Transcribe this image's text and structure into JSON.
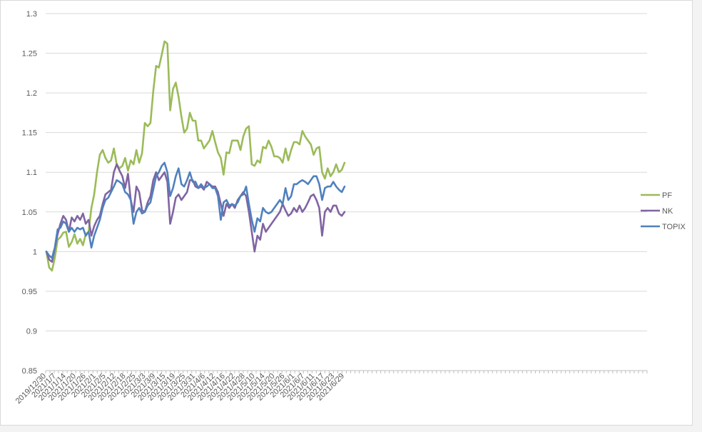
{
  "chart_data": {
    "type": "line",
    "title": "",
    "xlabel": "",
    "ylabel": "",
    "ylim": [
      0.85,
      1.3
    ],
    "yticks": [
      "0.85",
      "0.9",
      "0.95",
      "1",
      "1.05",
      "1.1",
      "1.15",
      "1.2",
      "1.25",
      "1.3"
    ],
    "grid": "horizontal",
    "legend_position": "right",
    "x_labels": [
      "2019/12/30",
      "2021/1/7",
      "2021/1/14",
      "2021/1/20",
      "2021/1/26",
      "2021/2/1",
      "2021/2/5",
      "2021/2/12",
      "2021/2/18",
      "2021/2/25",
      "2021/3/3",
      "2021/3/9",
      "2021/3/15",
      "2021/3/19",
      "2021/3/25",
      "2021/3/31",
      "2021/4/6",
      "2021/4/12",
      "2021/4/16",
      "2021/4/22",
      "2021/4/28",
      "2021/5/10",
      "2021/5/14",
      "2021/5/20",
      "2021/5/26",
      "2021/6/1",
      "2021/6/7",
      "2021/6/11",
      "2021/6/17",
      "2021/6/23",
      "2021/6/29"
    ],
    "series": [
      {
        "name": "PF",
        "color": "#9bbb59",
        "values": [
          1.0,
          0.98,
          0.976,
          0.992,
          1.015,
          1.018,
          1.024,
          1.025,
          1.006,
          1.012,
          1.022,
          1.01,
          1.016,
          1.008,
          1.022,
          1.025,
          1.055,
          1.072,
          1.1,
          1.122,
          1.128,
          1.118,
          1.112,
          1.115,
          1.13,
          1.11,
          1.105,
          1.108,
          1.118,
          1.102,
          1.115,
          1.11,
          1.128,
          1.112,
          1.124,
          1.162,
          1.158,
          1.162,
          1.202,
          1.234,
          1.232,
          1.248,
          1.265,
          1.262,
          1.178,
          1.205,
          1.213,
          1.195,
          1.17,
          1.15,
          1.155,
          1.175,
          1.165,
          1.165,
          1.14,
          1.14,
          1.13,
          1.135,
          1.14,
          1.152,
          1.138,
          1.125,
          1.118,
          1.097,
          1.125,
          1.124,
          1.14,
          1.14,
          1.14,
          1.128,
          1.145,
          1.155,
          1.158,
          1.11,
          1.108,
          1.115,
          1.112,
          1.132,
          1.13,
          1.14,
          1.132,
          1.12,
          1.12,
          1.118,
          1.112,
          1.13,
          1.115,
          1.128,
          1.138,
          1.138,
          1.135,
          1.152,
          1.145,
          1.14,
          1.135,
          1.122,
          1.13,
          1.132,
          1.1,
          1.092,
          1.105,
          1.095,
          1.1,
          1.11,
          1.1,
          1.103,
          1.112
        ]
      },
      {
        "name": "NK",
        "color": "#8064a2",
        "values": [
          1.0,
          0.99,
          0.987,
          1.004,
          1.022,
          1.035,
          1.045,
          1.04,
          1.025,
          1.043,
          1.038,
          1.045,
          1.04,
          1.048,
          1.035,
          1.04,
          1.02,
          1.032,
          1.04,
          1.045,
          1.06,
          1.072,
          1.075,
          1.078,
          1.1,
          1.11,
          1.102,
          1.095,
          1.08,
          1.098,
          1.065,
          1.05,
          1.082,
          1.075,
          1.052,
          1.05,
          1.062,
          1.07,
          1.09,
          1.1,
          1.09,
          1.095,
          1.1,
          1.088,
          1.035,
          1.05,
          1.068,
          1.072,
          1.065,
          1.07,
          1.075,
          1.09,
          1.09,
          1.082,
          1.08,
          1.082,
          1.078,
          1.088,
          1.085,
          1.082,
          1.082,
          1.075,
          1.06,
          1.045,
          1.06,
          1.055,
          1.06,
          1.055,
          1.065,
          1.07,
          1.075,
          1.07,
          1.05,
          1.025,
          1.0,
          1.02,
          1.015,
          1.035,
          1.025,
          1.03,
          1.035,
          1.04,
          1.045,
          1.05,
          1.06,
          1.052,
          1.045,
          1.048,
          1.055,
          1.05,
          1.058,
          1.05,
          1.055,
          1.062,
          1.07,
          1.072,
          1.065,
          1.055,
          1.02,
          1.05,
          1.055,
          1.05,
          1.058,
          1.058,
          1.048,
          1.045,
          1.05
        ]
      },
      {
        "name": "TOPIX",
        "color": "#4f81bd",
        "values": [
          1.0,
          0.995,
          0.992,
          1.005,
          1.028,
          1.03,
          1.038,
          1.035,
          1.025,
          1.03,
          1.025,
          1.03,
          1.028,
          1.03,
          1.02,
          1.025,
          1.005,
          1.02,
          1.03,
          1.04,
          1.055,
          1.065,
          1.068,
          1.075,
          1.082,
          1.09,
          1.088,
          1.085,
          1.075,
          1.072,
          1.065,
          1.035,
          1.05,
          1.055,
          1.048,
          1.05,
          1.058,
          1.062,
          1.078,
          1.095,
          1.1,
          1.108,
          1.112,
          1.1,
          1.07,
          1.08,
          1.095,
          1.105,
          1.085,
          1.082,
          1.09,
          1.1,
          1.088,
          1.088,
          1.08,
          1.085,
          1.08,
          1.082,
          1.085,
          1.08,
          1.08,
          1.07,
          1.04,
          1.062,
          1.065,
          1.058,
          1.06,
          1.058,
          1.062,
          1.07,
          1.072,
          1.082,
          1.06,
          1.04,
          1.025,
          1.042,
          1.038,
          1.055,
          1.05,
          1.048,
          1.05,
          1.055,
          1.06,
          1.065,
          1.06,
          1.08,
          1.065,
          1.07,
          1.085,
          1.085,
          1.088,
          1.09,
          1.088,
          1.085,
          1.09,
          1.095,
          1.095,
          1.085,
          1.065,
          1.08,
          1.082,
          1.082,
          1.088,
          1.082,
          1.078,
          1.075,
          1.082
        ]
      }
    ]
  }
}
